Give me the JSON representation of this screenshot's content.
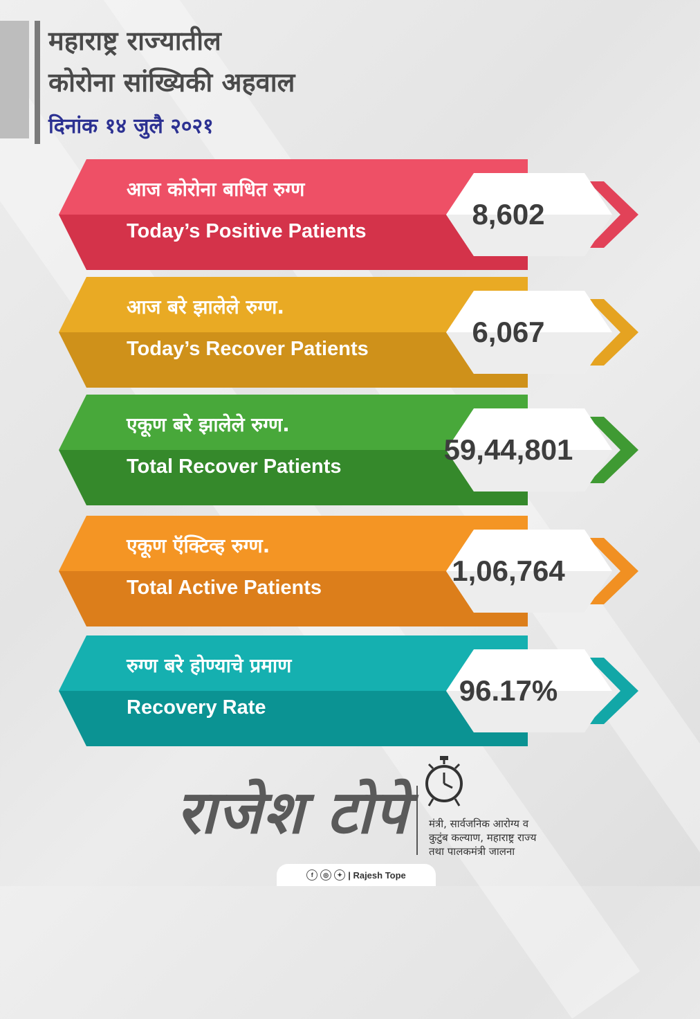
{
  "header": {
    "title_line1": "महाराष्ट्र राज्यातील",
    "title_line2": "कोरोना सांख्यिकी अहवाल",
    "date": "दिनांक १४ जुलै २०२१"
  },
  "stats": [
    {
      "label_mr": "आज कोरोना बाधित रुग्ण",
      "label_en": "Today’s Positive Patients",
      "value": "8,602",
      "color_top": "#ee5066",
      "color_bottom": "#d4334a",
      "arrow": "#e24258"
    },
    {
      "label_mr": "आज बरे झालेले रुग्ण.",
      "label_en": "Today’s Recover Patients",
      "value": "6,067",
      "color_top": "#e9aa24",
      "color_bottom": "#cf911a",
      "arrow": "#e5a321"
    },
    {
      "label_mr": "एकूण बरे झालेले रुग्ण.",
      "label_en": "Total Recover Patients",
      "value": "59,44,801",
      "color_top": "#48a83a",
      "color_bottom": "#35892b",
      "arrow": "#3f9a33"
    },
    {
      "label_mr": "एकूण ऍक्टिव्ह रुग्ण.",
      "label_en": "Total Active Patients",
      "value": "1,06,764",
      "color_top": "#f49524",
      "color_bottom": "#dc7e1b",
      "arrow": "#f19022"
    },
    {
      "label_mr": "रुग्ण बरे होण्याचे प्रमाण",
      "label_en": "Recovery Rate",
      "value": "96.17%",
      "color_top": "#15b0b0",
      "color_bottom": "#0b9393",
      "arrow": "#12a7a7"
    }
  ],
  "footer": {
    "signature": "राजेश टोपे",
    "designation_line1": "मंत्री, सार्वजनिक आरोग्य व",
    "designation_line2": "कुटुंब कल्याण, महाराष्ट्र राज्य",
    "designation_line3": "तथा पालकमंत्री जालना",
    "social_handle": "| Rajesh Tope"
  }
}
